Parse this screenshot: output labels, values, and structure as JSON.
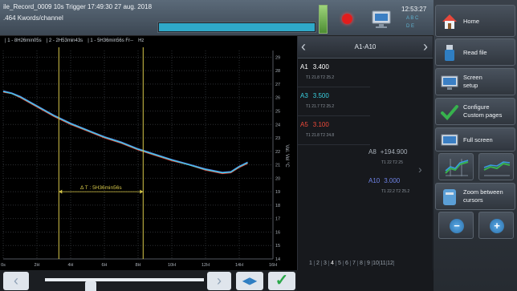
{
  "header": {
    "record_title": "ile_Record_0009  10s  Trigger 17:49:30 27 aug. 2018",
    "record_sub": ".464 Kwords/channel",
    "progress": 0.99,
    "clock_time": "12:53:27",
    "clock_line2": "A  B  C",
    "clock_line3": "D  E"
  },
  "chart": {
    "header_items": [
      "| 1 - 8H26min05s",
      "| 2 - 2H53min43s",
      "| 1 - 5H36min56s Fr--",
      "Hz"
    ],
    "cursor_label": "Δ T : 5H36min56s",
    "y_unit": "Val. Vel °C"
  },
  "chart_data": {
    "type": "line",
    "xlabel": "",
    "ylabel": "Val. Vel °C",
    "x_tick_labels": [
      "0s",
      "2H",
      "4H",
      "6H",
      "8H",
      "10H",
      "12H",
      "14H",
      "16H"
    ],
    "y_tick_labels": [
      "29",
      "28",
      "27",
      "26",
      "25",
      "24",
      "23",
      "22",
      "21",
      "20",
      "19",
      "18",
      "17",
      "16",
      "15",
      "14"
    ],
    "xlim": [
      0,
      16
    ],
    "ylim": [
      14,
      29.5
    ],
    "grid": true,
    "cursors": [
      {
        "x": 3.3
      },
      {
        "x": 8.3
      }
    ],
    "series": [
      {
        "color": "#e8443a",
        "x": [
          0,
          0.5,
          1,
          2,
          3,
          4,
          5,
          6,
          7,
          8,
          9,
          10,
          11,
          12,
          13,
          13.5,
          14,
          14.5
        ],
        "y": [
          26.4,
          26.3,
          26.0,
          25.3,
          24.6,
          24.0,
          23.5,
          23.0,
          22.6,
          22.1,
          21.7,
          21.3,
          21.0,
          20.6,
          20.35,
          20.4,
          20.8,
          21.1
        ]
      },
      {
        "color": "#5c7fe0",
        "x": [
          0,
          0.5,
          1,
          2,
          3,
          4,
          5,
          6,
          7,
          8,
          9,
          10,
          11,
          12,
          13,
          13.5,
          14,
          14.5
        ],
        "y": [
          26.5,
          26.35,
          26.1,
          25.4,
          24.7,
          24.1,
          23.6,
          23.1,
          22.7,
          22.2,
          21.8,
          21.4,
          21.05,
          20.7,
          20.45,
          20.5,
          20.9,
          21.2
        ]
      },
      {
        "color": "#3ed3e6",
        "x": [
          0,
          0.5,
          1,
          2,
          3,
          4,
          5,
          6,
          7,
          8,
          9,
          10,
          11,
          12,
          13,
          13.5,
          14,
          14.5
        ],
        "y": [
          26.45,
          26.3,
          26.05,
          25.35,
          24.65,
          24.05,
          23.55,
          23.05,
          22.65,
          22.15,
          21.75,
          21.35,
          21.0,
          20.65,
          20.4,
          20.45,
          20.85,
          21.15
        ]
      }
    ]
  },
  "channels": {
    "title": "A1-A10",
    "rows": [
      {
        "name": "A1",
        "value": "3.400",
        "sub": "T1 21.8  T2 25.2",
        "color": "#ffffff"
      },
      {
        "name": "A3",
        "value": "3.500",
        "sub": "T1 21.7  T2 25.2",
        "color": "#39d0e0"
      },
      {
        "name": "A5",
        "value": "3.100",
        "sub": "T1 21.8  T2 24.8",
        "color": "#ef4a3a"
      }
    ],
    "rows_right": [
      {
        "name": "A8",
        "value": "+194.900",
        "sub": "T1 22  T2 25",
        "color": "#a9b1ba"
      },
      {
        "name": "A10",
        "value": "3.000",
        "sub": "T1 22.2  T2 25.2",
        "color": "#6f83e6"
      }
    ],
    "pages": [
      "1",
      "2",
      "3",
      "4",
      "5",
      "6",
      "7",
      "8",
      "9",
      "10",
      "11",
      "12"
    ],
    "active_page": "4"
  },
  "menu": {
    "home": "Home",
    "read_file": "Read file",
    "screen_setup_1": "Screen",
    "screen_setup_2": "setup",
    "configure_1": "Configure",
    "configure_2": "Custom pages",
    "full_screen": "Full screen",
    "zoom_1": "Zoom between",
    "zoom_2": "cursors"
  },
  "bottom": {
    "left_arrow": "‹",
    "right_arrow": "›",
    "zoom_symbol": "◀▶",
    "ok_symbol": "✓"
  }
}
